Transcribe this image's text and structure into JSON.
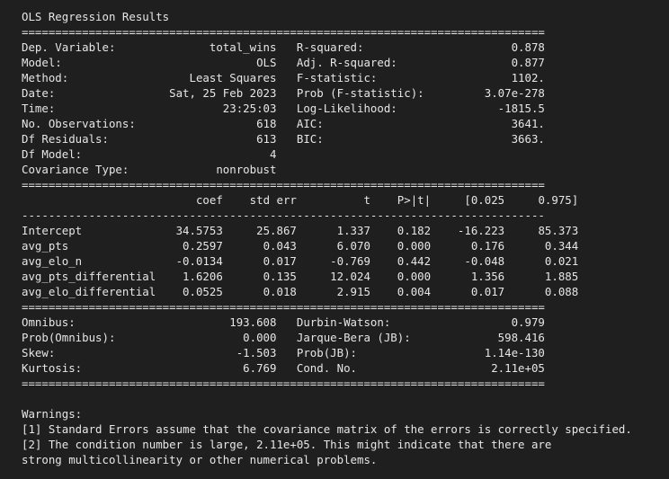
{
  "title": "OLS Regression Results",
  "sep_long": "==============================================================================",
  "sep_mid": "------------------------------------------------------------------------------",
  "summary": {
    "left": [
      [
        "Dep. Variable:",
        "total_wins"
      ],
      [
        "Model:",
        "OLS"
      ],
      [
        "Method:",
        "Least Squares"
      ],
      [
        "Date:",
        "Sat, 25 Feb 2023"
      ],
      [
        "Time:",
        "23:25:03"
      ],
      [
        "No. Observations:",
        "618"
      ],
      [
        "Df Residuals:",
        "613"
      ],
      [
        "Df Model:",
        "4"
      ],
      [
        "Covariance Type:",
        "nonrobust"
      ]
    ],
    "right": [
      [
        "R-squared:",
        "0.878"
      ],
      [
        "Adj. R-squared:",
        "0.877"
      ],
      [
        "F-statistic:",
        "1102."
      ],
      [
        "Prob (F-statistic):",
        "3.07e-278"
      ],
      [
        "Log-Likelihood:",
        "-1815.5"
      ],
      [
        "AIC:",
        "3641."
      ],
      [
        "BIC:",
        "3663."
      ]
    ]
  },
  "coef_table": {
    "headers": [
      "coef",
      "std err",
      "t",
      "P>|t|",
      "[0.025",
      "0.975]"
    ],
    "rows": [
      [
        "Intercept",
        "34.5753",
        "25.867",
        "1.337",
        "0.182",
        "-16.223",
        "85.373"
      ],
      [
        "avg_pts",
        "0.2597",
        "0.043",
        "6.070",
        "0.000",
        "0.176",
        "0.344"
      ],
      [
        "avg_elo_n",
        "-0.0134",
        "0.017",
        "-0.769",
        "0.442",
        "-0.048",
        "0.021"
      ],
      [
        "avg_pts_differential",
        "1.6206",
        "0.135",
        "12.024",
        "0.000",
        "1.356",
        "1.885"
      ],
      [
        "avg_elo_differential",
        "0.0525",
        "0.018",
        "2.915",
        "0.004",
        "0.017",
        "0.088"
      ]
    ]
  },
  "diagnostics": {
    "left": [
      [
        "Omnibus:",
        "193.608"
      ],
      [
        "Prob(Omnibus):",
        "0.000"
      ],
      [
        "Skew:",
        "-1.503"
      ],
      [
        "Kurtosis:",
        "6.769"
      ]
    ],
    "right": [
      [
        "Durbin-Watson:",
        "0.979"
      ],
      [
        "Jarque-Bera (JB):",
        "598.416"
      ],
      [
        "Prob(JB):",
        "1.14e-130"
      ],
      [
        "Cond. No.",
        "2.11e+05"
      ]
    ]
  },
  "warnings": {
    "heading": "Warnings:",
    "lines": [
      "[1] Standard Errors assume that the covariance matrix of the errors is correctly specified.",
      "[2] The condition number is large, 2.11e+05. This might indicate that there are",
      "strong multicollinearity or other numerical problems."
    ]
  },
  "colors": {
    "background": "#1f1f1f",
    "text": "#e6e6e6"
  }
}
